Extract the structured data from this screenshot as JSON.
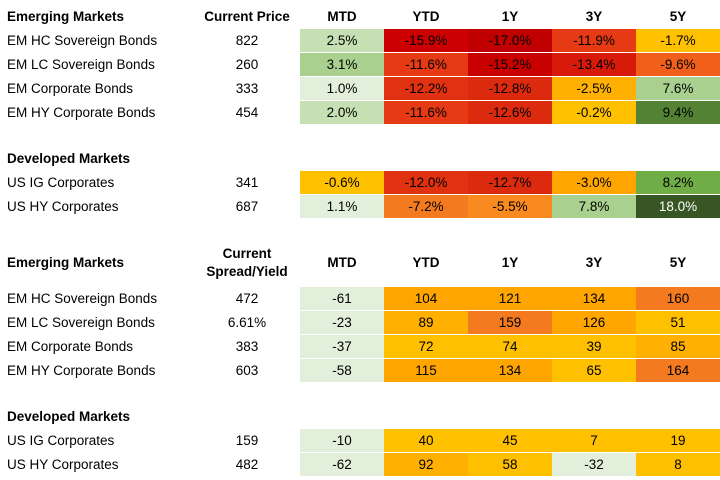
{
  "returns_table": {
    "headers": [
      "Emerging Markets",
      "Current Price",
      "MTD",
      "YTD",
      "1Y",
      "3Y",
      "5Y"
    ],
    "em_rows": [
      {
        "name": "EM HC Sovereign Bonds",
        "value": "822",
        "cells": [
          {
            "v": "2.5%",
            "c": "#c6e0b4"
          },
          {
            "v": "-15.9%",
            "c": "#cc0000"
          },
          {
            "v": "-17.0%",
            "c": "#c00000"
          },
          {
            "v": "-11.9%",
            "c": "#e53a13"
          },
          {
            "v": "-1.7%",
            "c": "#ffc000"
          }
        ]
      },
      {
        "name": "EM LC Sovereign Bonds",
        "value": "260",
        "cells": [
          {
            "v": "3.1%",
            "c": "#a9d08e"
          },
          {
            "v": "-11.6%",
            "c": "#e53a13"
          },
          {
            "v": "-15.2%",
            "c": "#c80000"
          },
          {
            "v": "-13.4%",
            "c": "#d81a0a"
          },
          {
            "v": "-9.6%",
            "c": "#f0601a"
          }
        ]
      },
      {
        "name": "EM Corporate Bonds",
        "value": "333",
        "cells": [
          {
            "v": "1.0%",
            "c": "#e2efda"
          },
          {
            "v": "-12.2%",
            "c": "#e03210"
          },
          {
            "v": "-12.8%",
            "c": "#dc2a0e"
          },
          {
            "v": "-2.5%",
            "c": "#ffb000"
          },
          {
            "v": "7.6%",
            "c": "#a9d08e"
          }
        ]
      },
      {
        "name": "EM HY Corporate Bonds",
        "value": "454",
        "cells": [
          {
            "v": "2.0%",
            "c": "#c6e0b4"
          },
          {
            "v": "-11.6%",
            "c": "#e53a13"
          },
          {
            "v": "-12.6%",
            "c": "#dc2a0e"
          },
          {
            "v": "-0.2%",
            "c": "#ffc000"
          },
          {
            "v": "9.4%",
            "c": "#548235"
          }
        ]
      }
    ],
    "dm_header": "Developed Markets",
    "dm_rows": [
      {
        "name": "US IG Corporates",
        "value": "341",
        "cells": [
          {
            "v": "-0.6%",
            "c": "#ffc000"
          },
          {
            "v": "-12.0%",
            "c": "#e03210"
          },
          {
            "v": "-12.7%",
            "c": "#dc2a0e"
          },
          {
            "v": "-3.0%",
            "c": "#ffa500"
          },
          {
            "v": "8.2%",
            "c": "#70ad47"
          }
        ]
      },
      {
        "name": "US HY Corporates",
        "value": "687",
        "cells": [
          {
            "v": "1.1%",
            "c": "#e2efda"
          },
          {
            "v": "-7.2%",
            "c": "#f47a20"
          },
          {
            "v": "-5.5%",
            "c": "#f88a20"
          },
          {
            "v": "7.8%",
            "c": "#a9d08e"
          },
          {
            "v": "18.0%",
            "c": "#375623",
            "t": "#ffffff"
          }
        ]
      }
    ]
  },
  "spread_table": {
    "headers": [
      "Emerging Markets",
      "Current Spread/Yield",
      "MTD",
      "YTD",
      "1Y",
      "3Y",
      "5Y"
    ],
    "em_rows": [
      {
        "name": "EM HC Sovereign Bonds",
        "value": "472",
        "cells": [
          {
            "v": "-61",
            "c": "#e2efda"
          },
          {
            "v": "104",
            "c": "#ffa500"
          },
          {
            "v": "121",
            "c": "#ffa500"
          },
          {
            "v": "134",
            "c": "#ffa500"
          },
          {
            "v": "160",
            "c": "#f47a20"
          }
        ]
      },
      {
        "name": "EM LC Sovereign Bonds",
        "value": "6.61%",
        "cells": [
          {
            "v": "-23",
            "c": "#e2efda"
          },
          {
            "v": "89",
            "c": "#ffb000"
          },
          {
            "v": "159",
            "c": "#f47a20"
          },
          {
            "v": "126",
            "c": "#ffa500"
          },
          {
            "v": "51",
            "c": "#ffc000"
          }
        ]
      },
      {
        "name": "EM Corporate Bonds",
        "value": "383",
        "cells": [
          {
            "v": "-37",
            "c": "#e2efda"
          },
          {
            "v": "72",
            "c": "#ffc000"
          },
          {
            "v": "74",
            "c": "#ffc000"
          },
          {
            "v": "39",
            "c": "#ffc000"
          },
          {
            "v": "85",
            "c": "#ffb000"
          }
        ]
      },
      {
        "name": "EM HY Corporate Bonds",
        "value": "603",
        "cells": [
          {
            "v": "-58",
            "c": "#e2efda"
          },
          {
            "v": "115",
            "c": "#ffa500"
          },
          {
            "v": "134",
            "c": "#ffa500"
          },
          {
            "v": "65",
            "c": "#ffc000"
          },
          {
            "v": "164",
            "c": "#f47a20"
          }
        ]
      }
    ],
    "dm_header": "Developed Markets",
    "dm_rows": [
      {
        "name": "US IG Corporates",
        "value": "159",
        "cells": [
          {
            "v": "-10",
            "c": "#e2efda"
          },
          {
            "v": "40",
            "c": "#ffc000"
          },
          {
            "v": "45",
            "c": "#ffc000"
          },
          {
            "v": "7",
            "c": "#ffc000"
          },
          {
            "v": "19",
            "c": "#ffc000"
          }
        ]
      },
      {
        "name": "US HY Corporates",
        "value": "482",
        "cells": [
          {
            "v": "-62",
            "c": "#e2efda"
          },
          {
            "v": "92",
            "c": "#ffb000"
          },
          {
            "v": "58",
            "c": "#ffc000"
          },
          {
            "v": "-32",
            "c": "#e2efda"
          },
          {
            "v": "8",
            "c": "#ffc000"
          }
        ]
      }
    ]
  }
}
